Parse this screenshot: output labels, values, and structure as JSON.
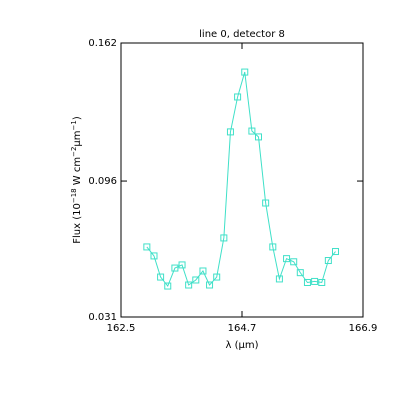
{
  "chart_data": {
    "type": "line",
    "title": "line 0, detector 8",
    "xlabel": "λ (μm)",
    "ylabel": [
      "Flux (10",
      "−18",
      " W cm",
      "−2",
      "μm",
      "−1",
      ")"
    ],
    "x": [
      162.97,
      163.1,
      163.22,
      163.35,
      163.48,
      163.61,
      163.73,
      163.86,
      163.99,
      164.11,
      164.24,
      164.37,
      164.49,
      164.62,
      164.75,
      164.88,
      165.0,
      165.13,
      165.26,
      165.38,
      165.51,
      165.64,
      165.76,
      165.89,
      166.02,
      166.15,
      166.27,
      166.4
    ],
    "series": [
      {
        "color": "#3fe0c8",
        "values": [
          0.0645,
          0.0602,
          0.0501,
          0.0458,
          0.0544,
          0.0559,
          0.0463,
          0.0487,
          0.053,
          0.0463,
          0.0501,
          0.0688,
          0.1195,
          0.1362,
          0.1481,
          0.1199,
          0.1171,
          0.0855,
          0.0645,
          0.0492,
          0.0589,
          0.0574,
          0.0522,
          0.0475,
          0.048,
          0.0475,
          0.058,
          0.0623
        ]
      }
    ],
    "xlim": [
      162.5,
      166.9
    ],
    "xticks": [
      162.5,
      164.7,
      166.9
    ],
    "ylim": [
      0.031,
      0.162
    ],
    "yticks": [
      0.031,
      0.096,
      0.162
    ]
  }
}
